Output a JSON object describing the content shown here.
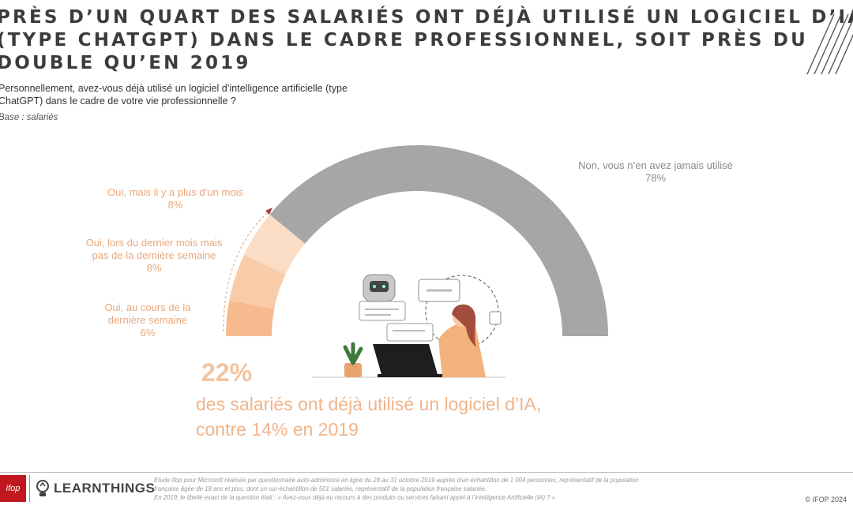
{
  "title": {
    "line1": "PRÈS D’UN QUART DES SALARIÉS ONT DÉJÀ UTILISÉ UN LOGICIEL D’IA",
    "line2": "(TYPE CHATGPT) DANS LE CADRE PROFESSIONNEL, SOIT PRÈS DU",
    "line3": "DOUBLE QU’EN 2019"
  },
  "question": {
    "line1": "Personnellement, avez-vous déjà utilisé un logiciel d’intelligence artificielle (type",
    "line2": "ChatGPT) dans le cadre de votre vie professionnelle ?"
  },
  "base": "Base : salariés",
  "chart_data": {
    "type": "pie",
    "shape": "half-donut",
    "categories": [
      "Oui, au cours de la dernière semaine",
      "Oui, lors du dernier mois mais pas de la dernière semaine",
      "Oui, mais il y a plus d’un mois",
      "Non, vous n’en avez jamais utilisé"
    ],
    "values": [
      6,
      8,
      8,
      78
    ],
    "unit": "%",
    "colors": [
      "#f7b98e",
      "#f9cca9",
      "#fbdcc4",
      "#a6a6a6"
    ]
  },
  "labels": {
    "semaine": {
      "line1": "Oui, au cours de la",
      "line2": "dernière semaine",
      "value": "6%"
    },
    "mois": {
      "line1": "Oui, lors du dernier mois mais",
      "line2": "pas de la dernière semaine",
      "value": "8%"
    },
    "plus_mois": {
      "line1": "Oui, mais il y a plus d’un mois",
      "value": "8%"
    },
    "non": {
      "line1": "Non, vous n’en avez jamais utilisé",
      "value": "78%"
    }
  },
  "highlight": {
    "pct": "22%",
    "line1": "des salariés ont déjà utilisé un logiciel d’IA,",
    "line2": "contre 14% en 2019"
  },
  "footer": {
    "ifop_logo": "ifop",
    "brand": "LEARNTHINGS",
    "note1": "Etude Ifop pour Microsoft réalisée par questionnaire auto-administré en ligne du 28 au 31 octobre 2019 auprès d’un échantillon de 1 004 personnes, représentatif de la population",
    "note2": "française âgée de 18 ans et plus, dont un sur-échantillon de 501 salariés, représentatif de la population française salariée.",
    "note3": "En 2019, le libellé exact de la question était : « Avez-vous déjà eu recours à des produits ou services faisant appel à l’intelligence Artificielle (IA) ? »",
    "copyright": "© IFOP 2024"
  },
  "colors": {
    "accent": "#f0b48a",
    "grey": "#a6a6a6",
    "ifop_red": "#c0181e"
  }
}
